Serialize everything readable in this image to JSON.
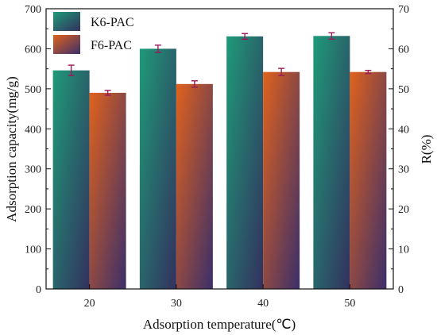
{
  "chart_data": {
    "type": "bar",
    "title": "",
    "xlabel": "Adsorption temperature(℃)",
    "ylabel": "Adsorption capacity(mg/g)",
    "y2label": "R(%)",
    "categories": [
      "20",
      "30",
      "40",
      "50"
    ],
    "ylim": [
      0,
      700
    ],
    "y2lim": [
      0,
      70
    ],
    "yticks": [
      "0",
      "100",
      "200",
      "300",
      "400",
      "500",
      "600",
      "700"
    ],
    "y2ticks": [
      "0",
      "10",
      "20",
      "30",
      "40",
      "50",
      "60",
      "70"
    ],
    "legend_position": "top-left",
    "series": [
      {
        "name": "K6-PAC",
        "values": [
          546,
          600,
          631,
          632
        ],
        "errors": [
          13,
          9,
          7,
          8
        ],
        "color_top": "#1e9a78",
        "color_bottom": "#33305e"
      },
      {
        "name": "F6-PAC",
        "values": [
          490,
          512,
          542,
          542
        ],
        "errors": [
          6,
          8,
          9,
          4
        ],
        "color_top": "#e0621c",
        "color_bottom": "#3a2f6b"
      }
    ],
    "error_bar_color": "#9b1b5a",
    "grid": false
  }
}
